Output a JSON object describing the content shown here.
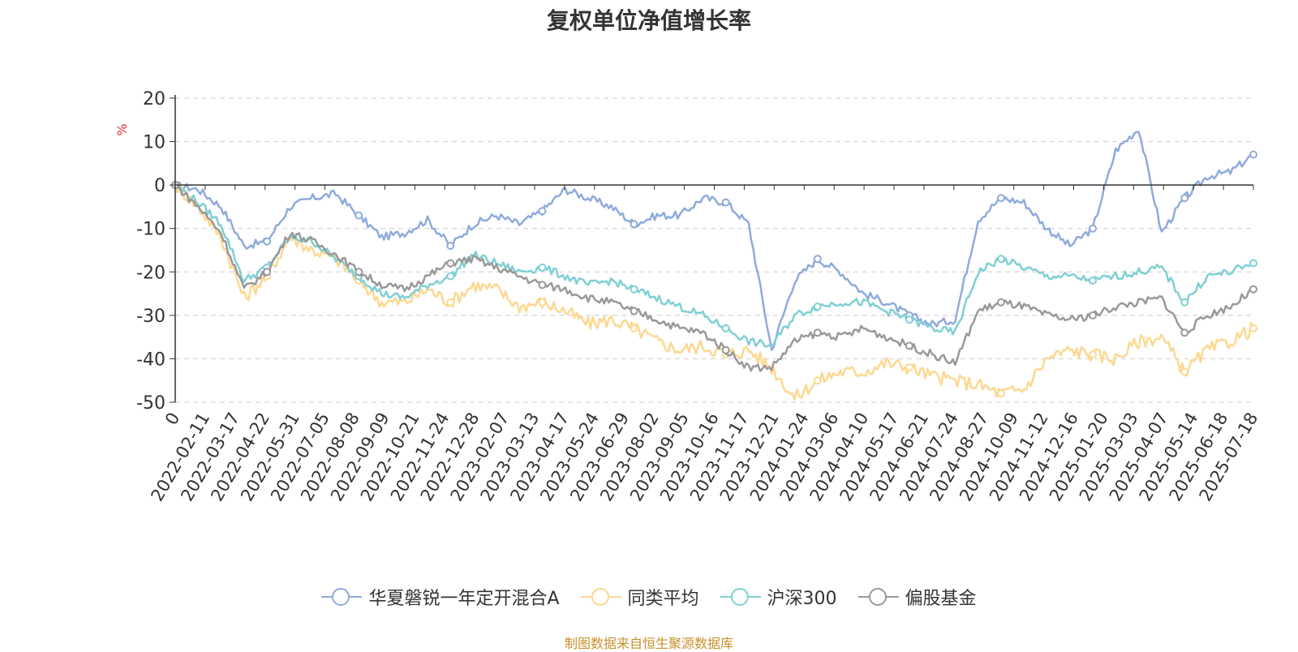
{
  "chart_data": {
    "type": "line",
    "title": "复权单位净值增长率",
    "ylabel": "%",
    "xlabel": "",
    "ylim": [
      -50,
      20
    ],
    "yticks": [
      20,
      10,
      0,
      -10,
      -20,
      -30,
      -40,
      -50
    ],
    "grid": true,
    "legend_position": "bottom-center",
    "x_tick_labels": [
      "0",
      "2022-02-11",
      "2022-03-17",
      "2022-04-22",
      "2022-05-31",
      "2022-07-05",
      "2022-08-08",
      "2022-09-09",
      "2022-10-21",
      "2022-11-24",
      "2022-12-28",
      "2023-02-07",
      "2023-03-13",
      "2023-04-17",
      "2023-05-24",
      "2023-06-29",
      "2023-08-02",
      "2023-09-05",
      "2023-10-16",
      "2023-11-17",
      "2023-12-21",
      "2024-01-24",
      "2024-03-06",
      "2024-04-10",
      "2024-05-17",
      "2024-06-21",
      "2024-07-24",
      "2024-08-27",
      "2024-10-09",
      "2024-11-12",
      "2024-12-16",
      "2025-01-20",
      "2025-03-03",
      "2025-04-07",
      "2025-05-14",
      "2025-06-18",
      "2025-07-18"
    ],
    "series": [
      {
        "name": "华夏磐锐一年定开混合A",
        "color": "#8fabdb",
        "values": [
          0,
          -1,
          -5,
          -14,
          -13,
          -5,
          -3,
          -2,
          -7,
          -12,
          -11,
          -8,
          -14,
          -9,
          -7,
          -9,
          -6,
          -1,
          -3,
          -5,
          -9,
          -7,
          -7,
          -3,
          -4,
          -9,
          -38,
          -22,
          -17,
          -20,
          -25,
          -27,
          -30,
          -32,
          -31,
          -8,
          -3,
          -4,
          -10,
          -14,
          -10,
          8,
          13,
          -11,
          -3,
          2,
          3,
          7
        ]
      },
      {
        "name": "同类平均",
        "color": "#fcd891",
        "values": [
          0,
          -5,
          -12,
          -26,
          -21,
          -12,
          -15,
          -17,
          -22,
          -27,
          -27,
          -24,
          -27,
          -23,
          -24,
          -28,
          -27,
          -29,
          -32,
          -31,
          -33,
          -36,
          -38,
          -37,
          -39,
          -38,
          -42,
          -49,
          -45,
          -43,
          -43,
          -41,
          -42,
          -44,
          -45,
          -46,
          -48,
          -47,
          -40,
          -38,
          -39,
          -40,
          -36,
          -35,
          -43,
          -38,
          -36,
          -33
        ]
      },
      {
        "name": "沪深300",
        "color": "#7fd0d4",
        "values": [
          0,
          -4,
          -9,
          -22,
          -19,
          -12,
          -13,
          -17,
          -21,
          -25,
          -26,
          -23,
          -21,
          -16,
          -18,
          -20,
          -19,
          -21,
          -23,
          -22,
          -24,
          -26,
          -28,
          -30,
          -33,
          -36,
          -37,
          -30,
          -28,
          -27,
          -27,
          -29,
          -31,
          -33,
          -34,
          -20,
          -17,
          -19,
          -21,
          -21,
          -22,
          -21,
          -20,
          -19,
          -27,
          -21,
          -20,
          -18
        ]
      },
      {
        "name": "偏股基金",
        "color": "#999999",
        "values": [
          0,
          -5,
          -11,
          -24,
          -20,
          -11,
          -13,
          -16,
          -20,
          -23,
          -24,
          -21,
          -18,
          -17,
          -19,
          -21,
          -23,
          -24,
          -26,
          -27,
          -29,
          -31,
          -33,
          -34,
          -38,
          -42,
          -42,
          -36,
          -34,
          -35,
          -33,
          -35,
          -37,
          -39,
          -41,
          -29,
          -27,
          -28,
          -30,
          -31,
          -30,
          -28,
          -27,
          -26,
          -34,
          -30,
          -28,
          -24
        ]
      }
    ]
  },
  "source_note": "制图数据来自恒生聚源数据库"
}
